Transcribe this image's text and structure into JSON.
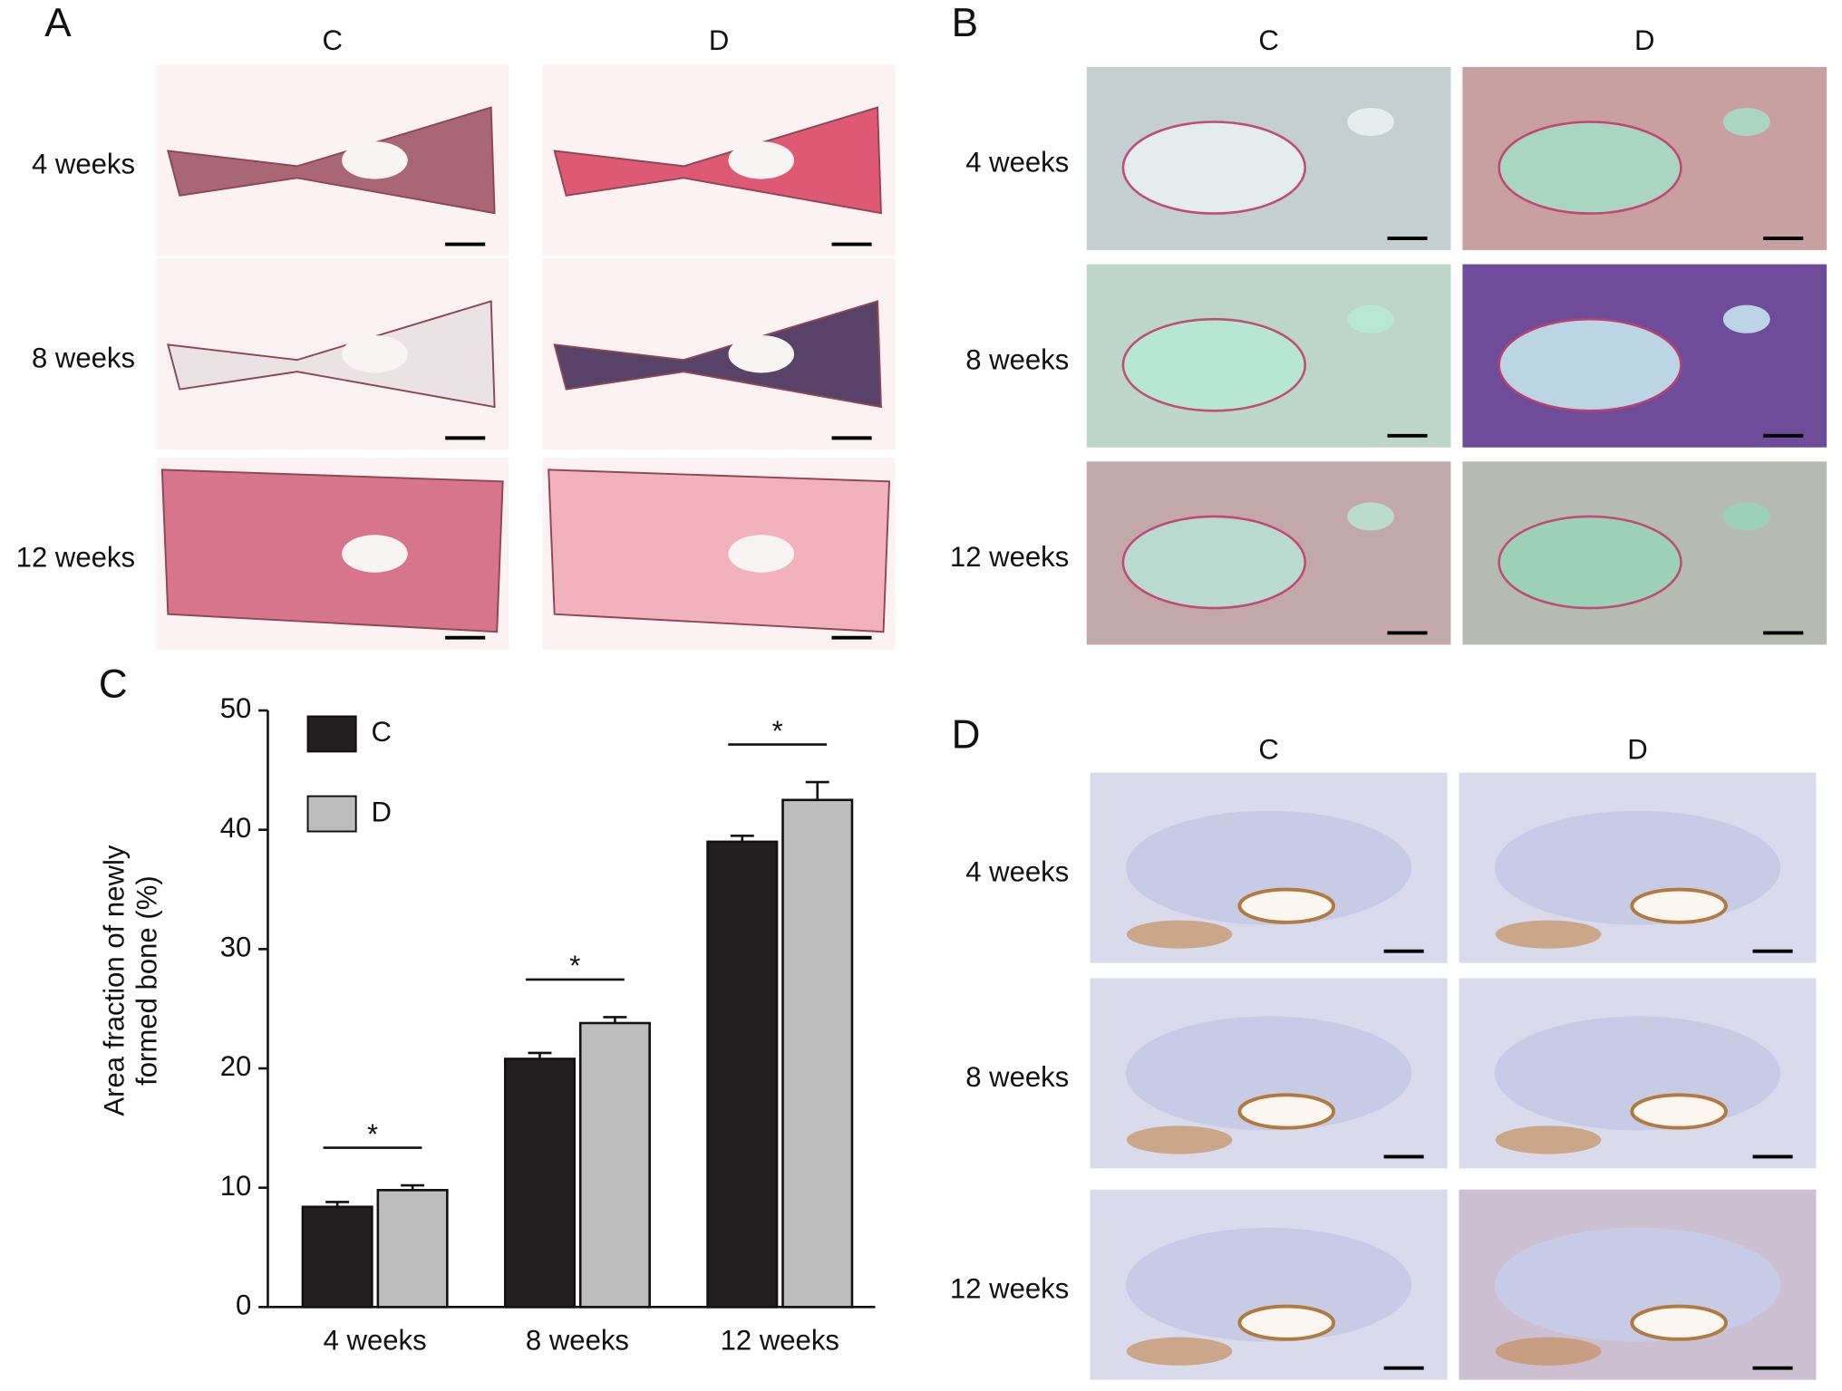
{
  "panel_a": {
    "label": "A",
    "columns": [
      "C",
      "D"
    ],
    "rows": [
      "4 weeks",
      "8 weeks",
      "12 weeks"
    ]
  },
  "panel_b": {
    "label": "B",
    "columns": [
      "C",
      "D"
    ],
    "rows": [
      "4 weeks",
      "8 weeks",
      "12 weeks"
    ]
  },
  "panel_c": {
    "label": "C"
  },
  "panel_d": {
    "label": "D",
    "columns": [
      "C",
      "D"
    ],
    "rows": [
      "4 weeks",
      "8 weeks",
      "12 weeks"
    ]
  },
  "chart_data": {
    "type": "bar",
    "ylabel": [
      "Area fraction of newly",
      "formed bone (%)"
    ],
    "categories": [
      "4 weeks",
      "8 weeks",
      "12 weeks"
    ],
    "series": [
      {
        "name": "C",
        "color": "#231f20",
        "values": [
          8.4,
          20.8,
          39.0
        ],
        "errors": [
          0.4,
          0.5,
          0.5
        ]
      },
      {
        "name": "D",
        "color": "#bdbdbd",
        "values": [
          9.8,
          23.8,
          42.5
        ],
        "errors": [
          0.4,
          0.5,
          1.5
        ]
      }
    ],
    "annotations": [
      "*",
      "*",
      "*"
    ],
    "ylim": [
      0,
      50
    ],
    "yticks": [
      0,
      10,
      20,
      30,
      40,
      50
    ],
    "grid": false,
    "legend": "upper-left"
  }
}
